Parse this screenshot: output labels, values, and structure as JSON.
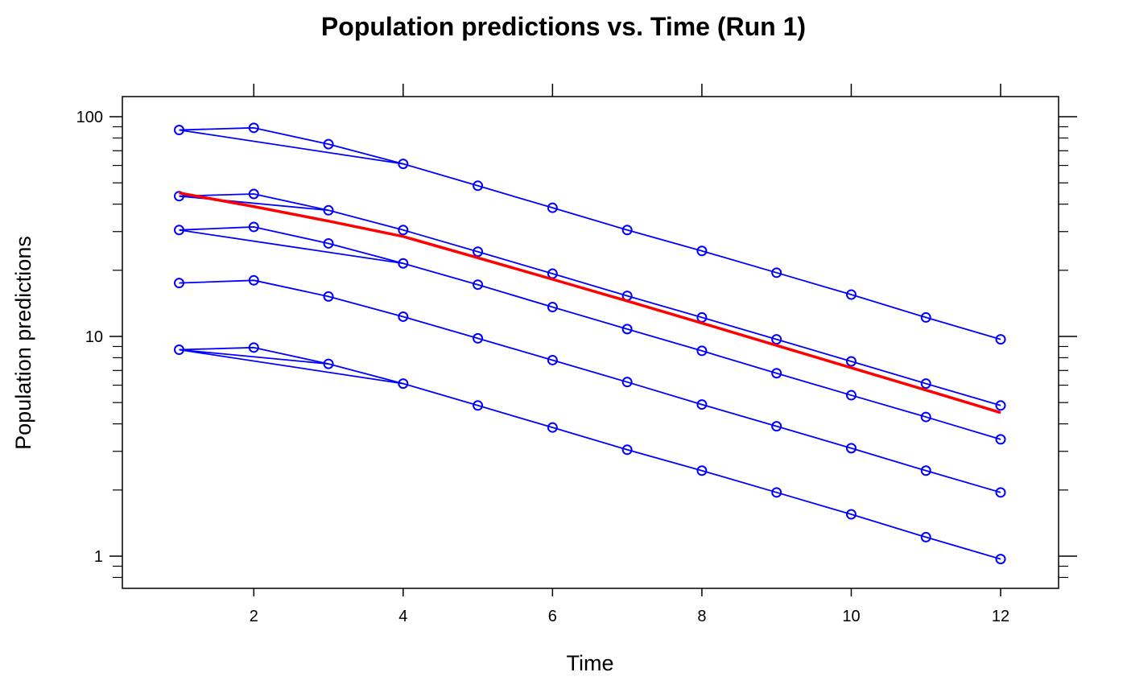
{
  "chart_data": {
    "type": "line",
    "title": "Population predictions vs. Time (Run 1)",
    "xlabel": "Time",
    "ylabel": "Population predictions",
    "xlim": [
      0.3,
      12.8
    ],
    "ylim": [
      0.7,
      120
    ],
    "yscale": "log",
    "x_ticks": [
      2,
      4,
      6,
      8,
      10,
      12
    ],
    "x_tick_labels": [
      "2",
      "4",
      "6",
      "8",
      "10",
      "12"
    ],
    "y_ticks": [
      1,
      10,
      100
    ],
    "y_tick_labels": [
      "1",
      "10",
      "100"
    ],
    "y_minor_ticks": [
      0.8,
      0.9,
      2,
      3,
      4,
      5,
      6,
      7,
      8,
      9,
      20,
      30,
      40,
      50,
      60,
      70,
      80,
      90
    ],
    "grid": false,
    "colors": {
      "individual": "#0000ff",
      "mean": "#ff0000",
      "axis": "#000000"
    },
    "series": [
      {
        "kind": "individual",
        "x": [
          1,
          2,
          3,
          4,
          5,
          6,
          7,
          8,
          9,
          10,
          11,
          12
        ],
        "y": [
          87,
          89,
          75,
          61,
          48.5,
          38.5,
          30.5,
          24.5,
          19.5,
          15.5,
          12.2,
          9.7
        ]
      },
      {
        "kind": "individual",
        "x": [
          1,
          2,
          3,
          4,
          5,
          6,
          7,
          8,
          9,
          10,
          11,
          12
        ],
        "y": [
          43.5,
          44.5,
          37.5,
          30.5,
          24.3,
          19.3,
          15.3,
          12.2,
          9.7,
          7.7,
          6.1,
          4.85
        ]
      },
      {
        "kind": "individual",
        "x": [
          1,
          2,
          3,
          4,
          5,
          6,
          7,
          8,
          9,
          10,
          11,
          12
        ],
        "y": [
          30.5,
          31.5,
          26.5,
          21.5,
          17.2,
          13.6,
          10.8,
          8.6,
          6.8,
          5.4,
          4.3,
          3.4
        ]
      },
      {
        "kind": "individual",
        "x": [
          1,
          2,
          3,
          4,
          5,
          6,
          7,
          8,
          9,
          10,
          11,
          12
        ],
        "y": [
          17.5,
          18,
          15.2,
          12.3,
          9.8,
          7.8,
          6.2,
          4.9,
          3.9,
          3.1,
          2.45,
          1.95
        ]
      },
      {
        "kind": "individual",
        "x": [
          1,
          2,
          3,
          4,
          5,
          6,
          7,
          8,
          9,
          10,
          11,
          12
        ],
        "y": [
          8.7,
          8.9,
          7.5,
          6.1,
          4.85,
          3.85,
          3.05,
          2.45,
          1.95,
          1.55,
          1.22,
          0.97
        ]
      },
      {
        "kind": "individual",
        "markers": false,
        "x": [
          1,
          4
        ],
        "y": [
          87,
          61
        ]
      },
      {
        "kind": "individual",
        "markers": false,
        "x": [
          1,
          3
        ],
        "y": [
          43.5,
          37.5
        ]
      },
      {
        "kind": "individual",
        "markers": false,
        "x": [
          1,
          4
        ],
        "y": [
          30.5,
          21.5
        ]
      },
      {
        "kind": "individual",
        "markers": false,
        "x": [
          1,
          3
        ],
        "y": [
          8.7,
          7.5
        ]
      },
      {
        "kind": "individual",
        "markers": false,
        "x": [
          1,
          4
        ],
        "y": [
          8.7,
          6.1
        ]
      },
      {
        "kind": "mean",
        "markers": false,
        "x": [
          1,
          2,
          3,
          4,
          5,
          6,
          7,
          8,
          9,
          10,
          11,
          12
        ],
        "y": [
          45,
          39,
          33.5,
          28.5,
          22.8,
          18.2,
          14.5,
          11.5,
          9.1,
          7.2,
          5.7,
          4.5
        ]
      }
    ]
  }
}
